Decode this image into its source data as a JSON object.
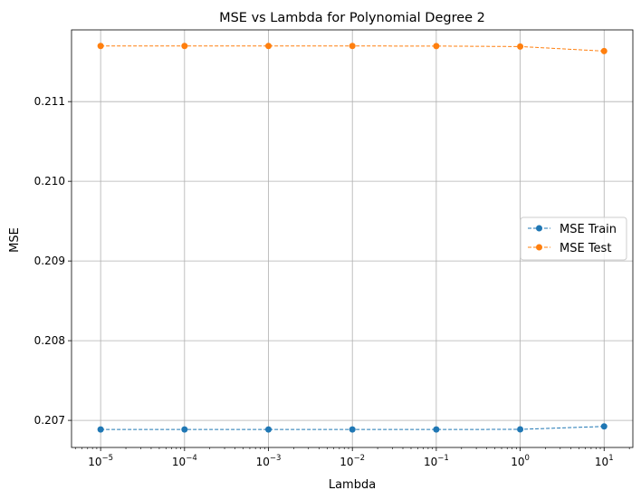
{
  "chart_data": {
    "type": "line",
    "title": "MSE vs Lambda for Polynomial Degree 2",
    "xlabel": "Lambda",
    "ylabel": "MSE",
    "xscale": "log",
    "xlim": [
      4.5e-06,
      22
    ],
    "ylim": [
      0.20666,
      0.2119
    ],
    "x": [
      1e-05,
      0.0001,
      0.001,
      0.01,
      0.1,
      1,
      10
    ],
    "x_tick_labels": [
      {
        "base": "10",
        "exp": "−5"
      },
      {
        "base": "10",
        "exp": "−4"
      },
      {
        "base": "10",
        "exp": "−3"
      },
      {
        "base": "10",
        "exp": "−2"
      },
      {
        "base": "10",
        "exp": "−1"
      },
      {
        "base": "10",
        "exp": "0"
      },
      {
        "base": "10",
        "exp": "1"
      }
    ],
    "y_ticks": [
      0.207,
      0.208,
      0.209,
      0.21,
      0.211
    ],
    "y_tick_labels": [
      "0.207",
      "0.208",
      "0.209",
      "0.210",
      "0.211"
    ],
    "grid": true,
    "legend_position": "center-right",
    "series": [
      {
        "name": "MSE Train",
        "color": "#1f77b4",
        "values": [
          0.206886,
          0.206886,
          0.206886,
          0.206886,
          0.206886,
          0.206887,
          0.206924
        ]
      },
      {
        "name": "MSE Test",
        "color": "#ff7f0e",
        "values": [
          0.211698,
          0.211698,
          0.211698,
          0.211698,
          0.211697,
          0.211691,
          0.211634
        ]
      }
    ]
  }
}
